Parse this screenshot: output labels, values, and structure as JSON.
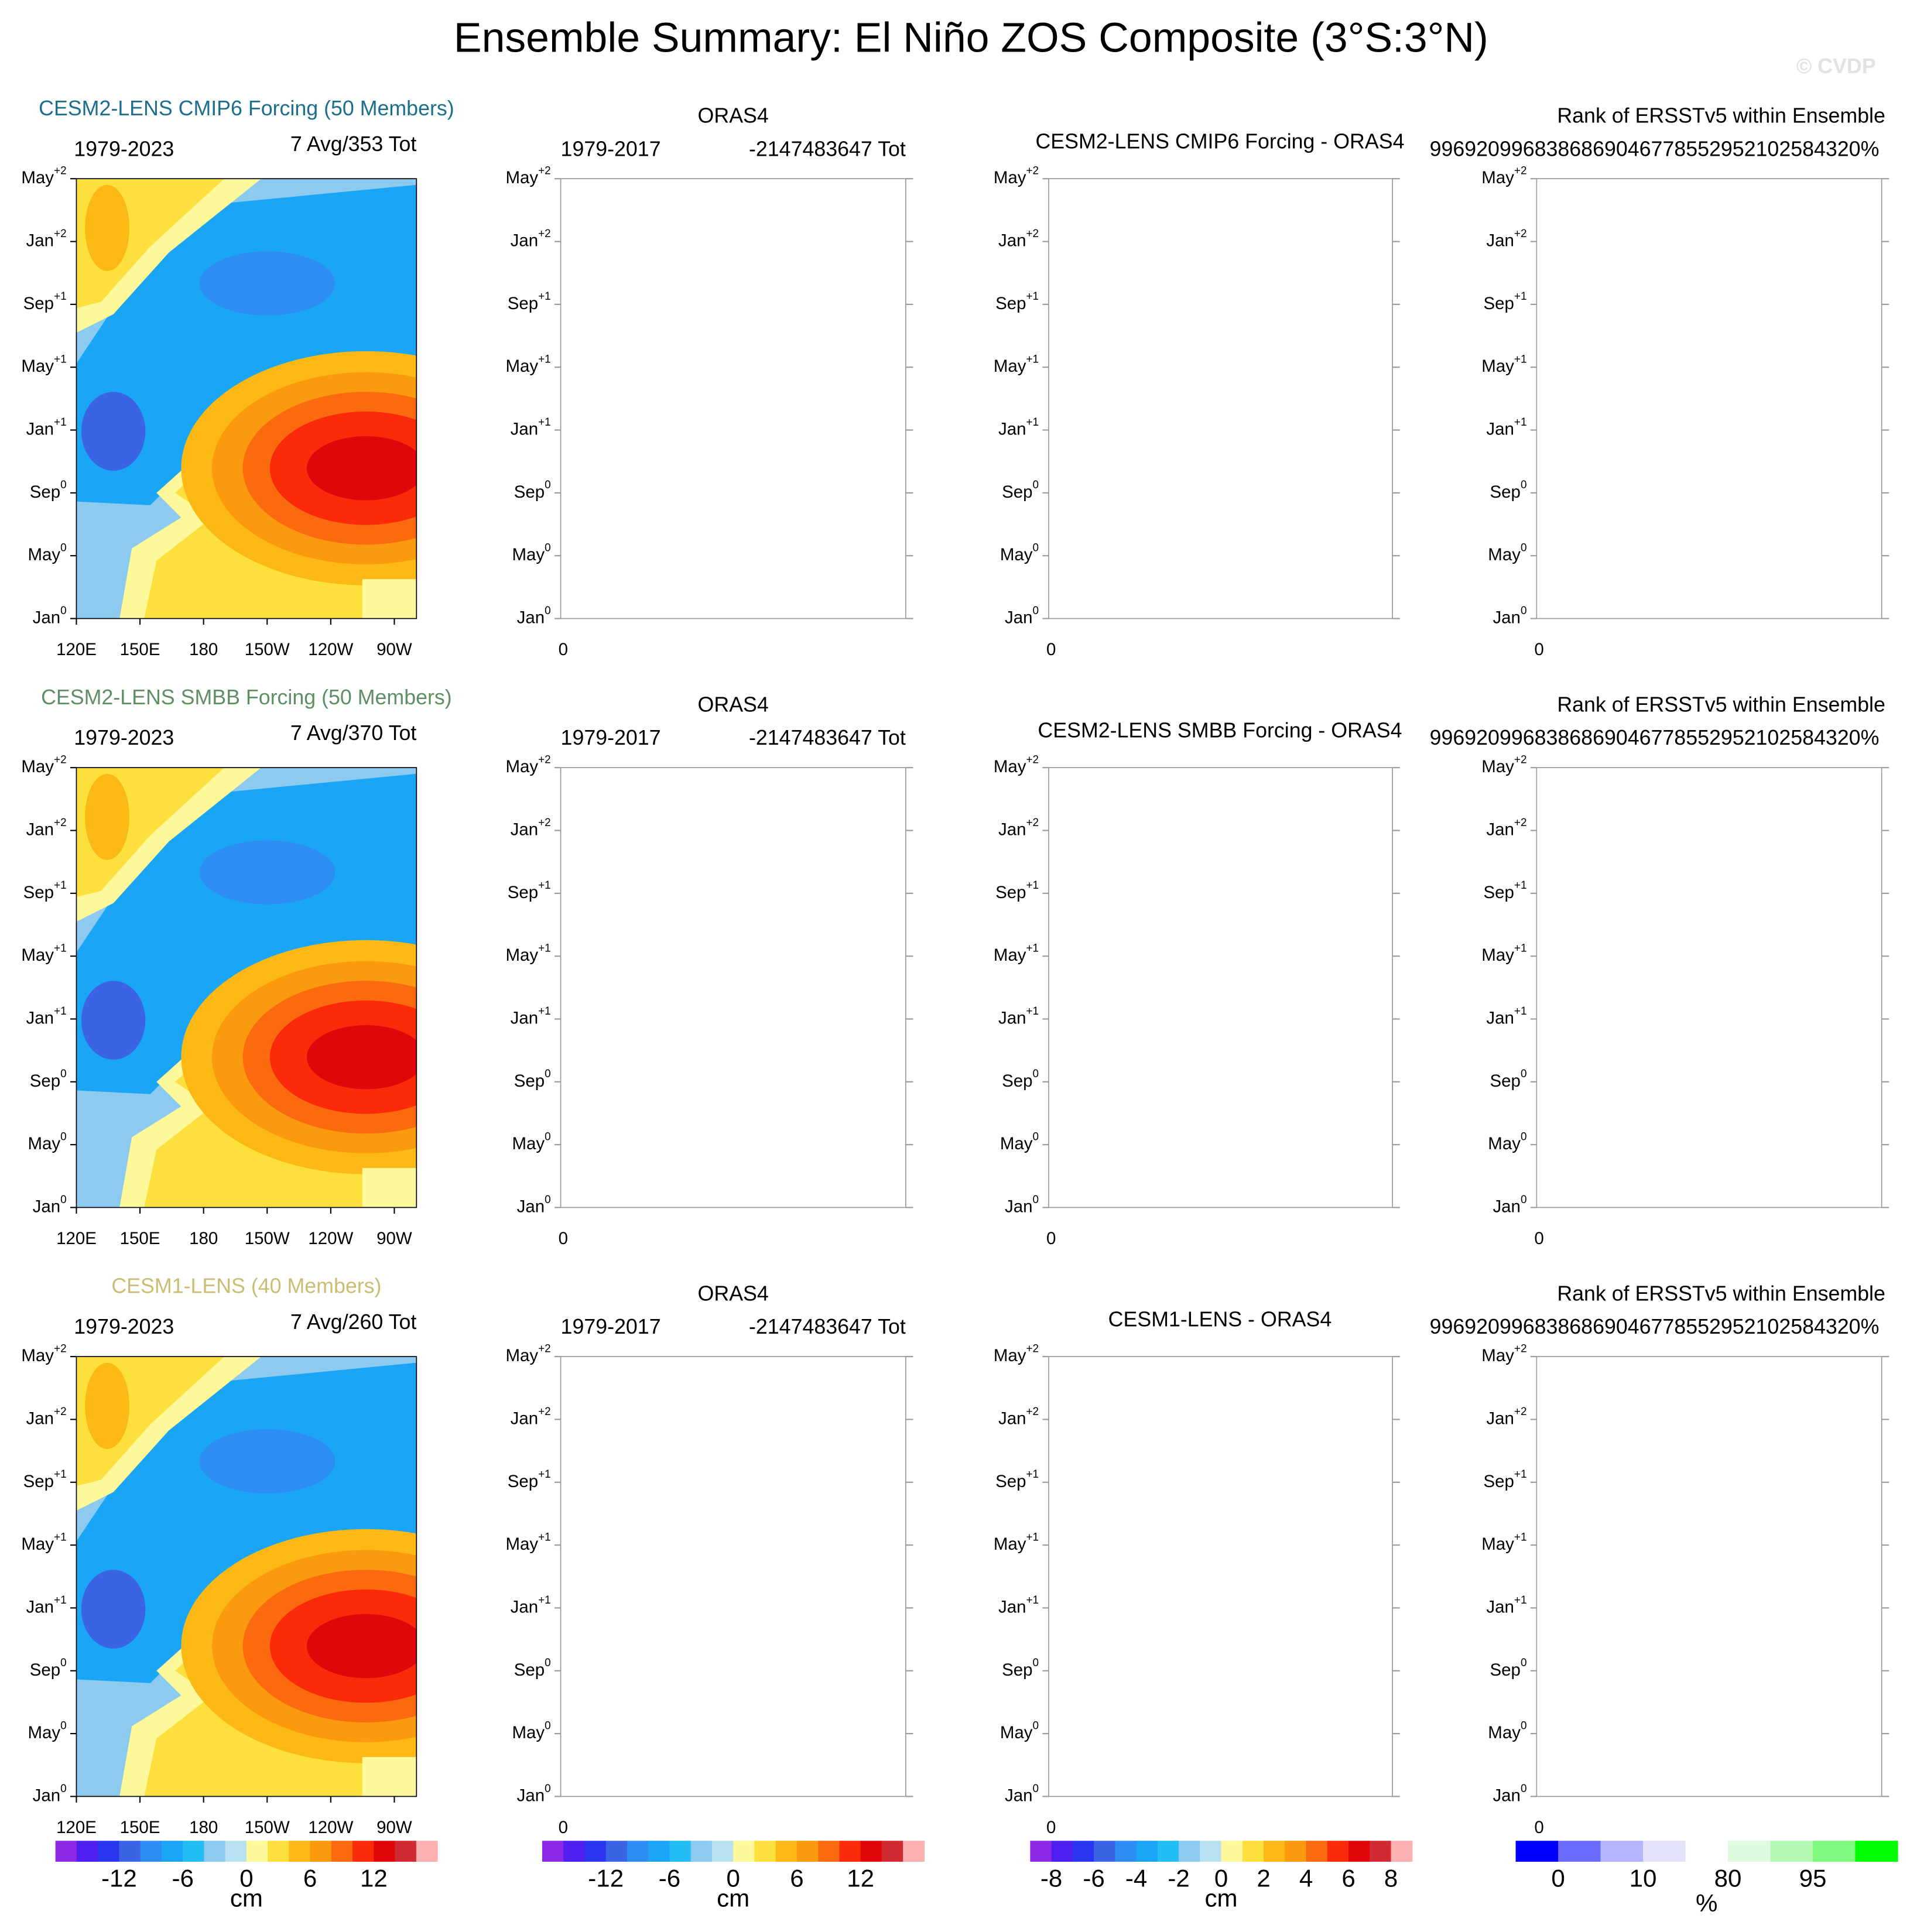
{
  "title": "Ensemble Summary: El Niño ZOS Composite (3°S:3°N)",
  "watermark": "© CVDP",
  "y_tick_labels": [
    {
      "month": "Jan",
      "sup": "0"
    },
    {
      "month": "May",
      "sup": "0"
    },
    {
      "month": "Sep",
      "sup": "0"
    },
    {
      "month": "Jan",
      "sup": "+1"
    },
    {
      "month": "May",
      "sup": "+1"
    },
    {
      "month": "Sep",
      "sup": "+1"
    },
    {
      "month": "Jan",
      "sup": "+2"
    },
    {
      "month": "May",
      "sup": "+2"
    }
  ],
  "model_x_tick_labels": [
    "120E",
    "150E",
    "180",
    "150W",
    "120W",
    "90W"
  ],
  "other_x_tick_label": "0",
  "rows": [
    {
      "model": {
        "title": "CESM2-LENS CMIP6 Forcing (50 Members)",
        "color": "#1b6f8c",
        "period": "1979-2023",
        "count": "7 Avg/353 Tot"
      },
      "obs": {
        "title": "ORAS4",
        "period": "1979-2017",
        "count": "-2147483647 Tot"
      },
      "diff": {
        "title": "CESM2-LENS CMIP6 Forcing - ORAS4"
      },
      "rank": {
        "title": "Rank of ERSSTv5 within Ensemble",
        "value": "9969209968386869046778552952102584320%"
      }
    },
    {
      "model": {
        "title": "CESM2-LENS SMBB Forcing (50 Members)",
        "color": "#5e8f64",
        "period": "1979-2023",
        "count": "7 Avg/370 Tot"
      },
      "obs": {
        "title": "ORAS4",
        "period": "1979-2017",
        "count": "-2147483647 Tot"
      },
      "diff": {
        "title": "CESM2-LENS SMBB Forcing - ORAS4"
      },
      "rank": {
        "title": "Rank of ERSSTv5 within Ensemble",
        "value": "9969209968386869046778552952102584320%"
      }
    },
    {
      "model": {
        "title": "CESM1-LENS (40 Members)",
        "color": "#cabd72",
        "period": "1979-2023",
        "count": "7 Avg/260 Tot"
      },
      "obs": {
        "title": "ORAS4",
        "period": "1979-2017",
        "count": "-2147483647 Tot"
      },
      "diff": {
        "title": "CESM1-LENS - ORAS4"
      },
      "rank": {
        "title": "Rank of ERSSTv5 within Ensemble",
        "value": "9969209968386869046778552952102584320%"
      }
    }
  ],
  "colorbars": [
    {
      "colors": [
        "#8c28e6",
        "#4f1ff0",
        "#2a35f0",
        "#3b63e6",
        "#2e8df2",
        "#1aa5f5",
        "#23bdf5",
        "#8ccaf0",
        "#b8e2f2",
        "#fdf89a",
        "#fde03d",
        "#fcb814",
        "#fc9a0f",
        "#fc6a0f",
        "#fa2a0a",
        "#e0060a",
        "#d02a33",
        "#fcb0b0"
      ],
      "lim": [
        -18,
        18
      ],
      "ticks": [
        -12,
        -6,
        0,
        6,
        12
      ],
      "units": "cm"
    },
    {
      "colors": [
        "#8c28e6",
        "#4f1ff0",
        "#2a35f0",
        "#3b63e6",
        "#2e8df2",
        "#1aa5f5",
        "#23bdf5",
        "#8ccaf0",
        "#b8e2f2",
        "#fdf89a",
        "#fde03d",
        "#fcb814",
        "#fc9a0f",
        "#fc6a0f",
        "#fa2a0a",
        "#e0060a",
        "#d02a33",
        "#fcb0b0"
      ],
      "lim": [
        -18,
        18
      ],
      "ticks": [
        -12,
        -6,
        0,
        6,
        12
      ],
      "units": "cm"
    },
    {
      "colors": [
        "#8c28e6",
        "#4f1ff0",
        "#2a35f0",
        "#3b63e6",
        "#2e8df2",
        "#1aa5f5",
        "#23bdf5",
        "#8ccaf0",
        "#b8e2f2",
        "#fdf89a",
        "#fde03d",
        "#fcb814",
        "#fc9a0f",
        "#fc6a0f",
        "#fa2a0a",
        "#e0060a",
        "#d02a33",
        "#fcb0b0"
      ],
      "lim": [
        -9,
        9
      ],
      "ticks": [
        -8,
        -6,
        -4,
        -2,
        0,
        2,
        4,
        6,
        8
      ],
      "units": "cm"
    },
    {
      "colors": [
        "#0000ff",
        "#6a6aff",
        "#b4b4ff",
        "#e2e2fa",
        "#ffffff",
        "#e0fae0",
        "#b4fab4",
        "#7efa7e",
        "#00ff00"
      ],
      "labels": [
        "0",
        "10",
        "80",
        "95"
      ],
      "units": "%"
    }
  ]
}
